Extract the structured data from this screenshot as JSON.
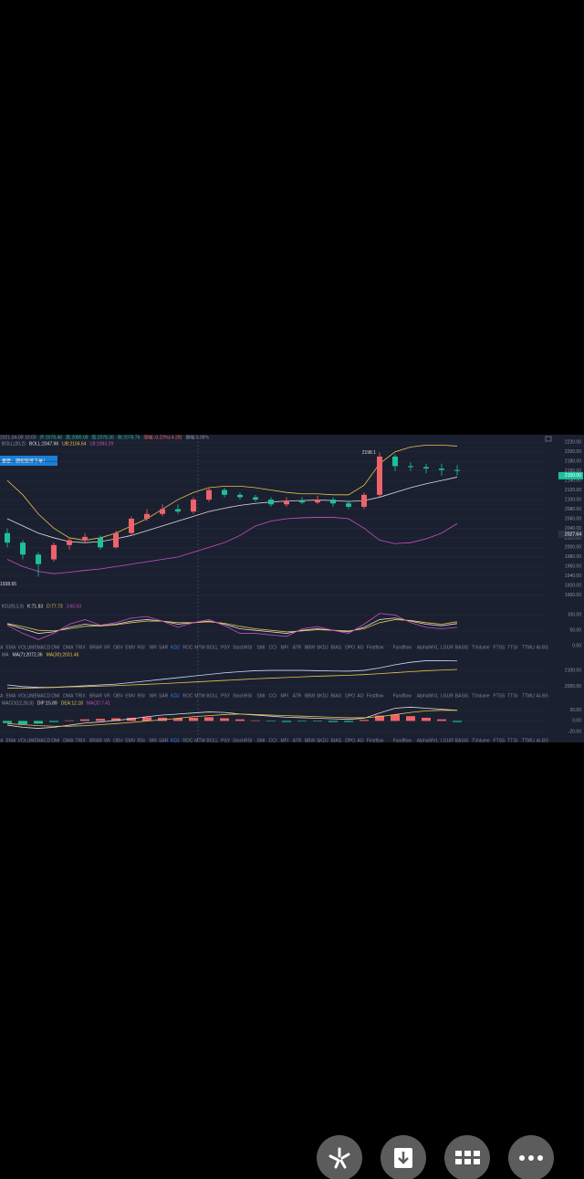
{
  "info": {
    "datetime": "2021-04-09 10:00",
    "open": "开:2078.48",
    "high": "高:2080.08",
    "low": "低:2078.36",
    "close": "收:2078.76",
    "change": "涨幅:-0.22%(-4.28)",
    "amplitude": "振幅:0.08%"
  },
  "banner": "重要：期权暂停下单！",
  "main": {
    "legend": [
      "BOLL(20,2)",
      "BOLL:2047.96",
      "UB:2104.64",
      "LB:1993.29"
    ],
    "ylim": [
      1890,
      2230
    ],
    "yticks": [
      {
        "value": 2220,
        "label": "2220.00"
      },
      {
        "value": 2200,
        "label": "2200.00"
      },
      {
        "value": 2180,
        "label": "2180.00"
      },
      {
        "value": 2160,
        "label": "2160.00"
      },
      {
        "value": 2140,
        "label": "2140.00"
      },
      {
        "value": 2120,
        "label": "2120.00"
      },
      {
        "value": 2100,
        "label": "2100.00"
      },
      {
        "value": 2080,
        "label": "2080.00"
      },
      {
        "value": 2060,
        "label": "2060.00"
      },
      {
        "value": 2040,
        "label": "2040.00"
      },
      {
        "value": 2020,
        "label": "2020.00"
      },
      {
        "value": 2000,
        "label": "2000.00"
      },
      {
        "value": 1980,
        "label": "1980.00"
      },
      {
        "value": 1960,
        "label": "1960.00"
      },
      {
        "value": 1940,
        "label": "1940.00"
      },
      {
        "value": 1920,
        "label": "1920.00"
      },
      {
        "value": 1900,
        "label": "1900.00"
      }
    ],
    "price_tags": [
      {
        "value": 2150,
        "label": "2150.00",
        "color": "#1ec09a"
      },
      {
        "value": 2027.64,
        "label": "2027.64",
        "color": "#2a3142"
      }
    ],
    "peak": {
      "value": 2198.1,
      "label": "2198.1",
      "index": 24
    },
    "trough": {
      "value": 1938.65,
      "label": "1938.65",
      "index": 2
    },
    "up_color": "#f0626a",
    "down_color": "#1ec09a",
    "candles": [
      [
        2030,
        2010,
        2040,
        2000
      ],
      [
        2010,
        1985,
        2015,
        1975
      ],
      [
        1985,
        1965,
        1990,
        1938.65
      ],
      [
        1975,
        2005,
        2010,
        1970
      ],
      [
        2005,
        2015,
        2020,
        1995
      ],
      [
        2015,
        2022,
        2030,
        2010
      ],
      [
        2020,
        2000,
        2025,
        1995
      ],
      [
        2000,
        2030,
        2035,
        1998
      ],
      [
        2030,
        2060,
        2065,
        2025
      ],
      [
        2060,
        2070,
        2080,
        2055
      ],
      [
        2070,
        2080,
        2090,
        2065
      ],
      [
        2080,
        2075,
        2090,
        2070
      ],
      [
        2075,
        2100,
        2105,
        2070
      ],
      [
        2100,
        2120,
        2125,
        2095
      ],
      [
        2120,
        2110,
        2125,
        2105
      ],
      [
        2110,
        2105,
        2115,
        2100
      ],
      [
        2105,
        2100,
        2110,
        2095
      ],
      [
        2100,
        2090,
        2105,
        2085
      ],
      [
        2090,
        2098,
        2105,
        2085
      ],
      [
        2098,
        2094,
        2105,
        2090
      ],
      [
        2094,
        2100,
        2108,
        2090
      ],
      [
        2100,
        2092,
        2105,
        2085
      ],
      [
        2092,
        2085,
        2098,
        2080
      ],
      [
        2085,
        2110,
        2115,
        2080
      ],
      [
        2110,
        2190,
        2198.1,
        2105
      ],
      [
        2190,
        2170,
        2195,
        2160
      ],
      [
        2170,
        2168,
        2178,
        2160
      ],
      [
        2168,
        2165,
        2175,
        2155
      ],
      [
        2165,
        2162,
        2175,
        2150
      ],
      [
        2162,
        2160,
        2172,
        2150
      ]
    ],
    "lines": [
      {
        "color": "#e8c34a",
        "values": [
          2140,
          2110,
          2070,
          2040,
          2020,
          2015,
          2020,
          2030,
          2045,
          2060,
          2080,
          2100,
          2115,
          2125,
          2128,
          2128,
          2125,
          2120,
          2115,
          2112,
          2112,
          2110,
          2110,
          2130,
          2175,
          2200,
          2210,
          2214,
          2214,
          2212
        ]
      },
      {
        "color": "#dddddd",
        "values": [
          2060,
          2045,
          2030,
          2020,
          2012,
          2010,
          2012,
          2018,
          2025,
          2035,
          2045,
          2055,
          2065,
          2075,
          2082,
          2088,
          2092,
          2095,
          2097,
          2098,
          2099,
          2098,
          2096,
          2098,
          2105,
          2115,
          2125,
          2133,
          2140,
          2147
        ]
      },
      {
        "color": "#c94fc0",
        "values": [
          1975,
          1960,
          1950,
          1945,
          1948,
          1952,
          1955,
          1960,
          1965,
          1970,
          1975,
          1980,
          1990,
          2000,
          2010,
          2025,
          2045,
          2055,
          2060,
          2062,
          2063,
          2063,
          2060,
          2040,
          2015,
          2008,
          2010,
          2018,
          2030,
          2050
        ]
      }
    ]
  },
  "kdj": {
    "legend": [
      "KDJ(9,3,3)",
      "K:71.83",
      "D:77.73",
      "J:60.03"
    ],
    "ylim": [
      -15,
      140
    ],
    "yticks": [
      {
        "value": 100,
        "label": "100.00"
      },
      {
        "value": 50,
        "label": "50.00"
      },
      {
        "value": 0,
        "label": "0.00"
      }
    ],
    "lines": [
      {
        "color": "#dddddd",
        "values": [
          70,
          55,
          40,
          45,
          60,
          70,
          65,
          70,
          80,
          85,
          80,
          70,
          75,
          80,
          70,
          55,
          50,
          45,
          40,
          50,
          55,
          50,
          45,
          60,
          85,
          90,
          80,
          70,
          65,
          72
        ]
      },
      {
        "color": "#e8c34a",
        "values": [
          72,
          62,
          50,
          48,
          55,
          63,
          64,
          68,
          75,
          80,
          80,
          75,
          75,
          78,
          73,
          63,
          55,
          50,
          45,
          48,
          52,
          50,
          48,
          55,
          75,
          85,
          82,
          75,
          70,
          78
        ]
      },
      {
        "color": "#c94fc0",
        "values": [
          66,
          40,
          20,
          40,
          70,
          85,
          67,
          75,
          90,
          95,
          80,
          60,
          75,
          85,
          65,
          40,
          40,
          35,
          30,
          55,
          62,
          50,
          40,
          70,
          105,
          100,
          75,
          60,
          55,
          60
        ]
      }
    ]
  },
  "ma": {
    "legend": [
      "MA",
      "MA(7):2072.36",
      "MA(30):2031.46"
    ],
    "ylim": [
      1965,
      2185
    ],
    "yticks": [
      {
        "value": 2100,
        "label": "2100.00"
      },
      {
        "value": 2000,
        "label": "2000.00"
      }
    ],
    "lines": [
      {
        "color": "#cfd8ff",
        "values": [
          2010,
          2000,
          1995,
          1995,
          2000,
          2005,
          2010,
          2015,
          2025,
          2035,
          2045,
          2055,
          2065,
          2075,
          2085,
          2092,
          2098,
          2100,
          2100,
          2100,
          2098,
          2096,
          2095,
          2100,
          2115,
          2135,
          2150,
          2160,
          2160,
          2158
        ]
      },
      {
        "color": "#e8c34a",
        "values": [
          1990,
          1990,
          1992,
          1995,
          1998,
          2000,
          2003,
          2006,
          2010,
          2014,
          2018,
          2023,
          2028,
          2033,
          2038,
          2043,
          2048,
          2052,
          2056,
          2060,
          2064,
          2067,
          2070,
          2074,
          2080,
          2086,
          2092,
          2098,
          2102,
          2106
        ]
      }
    ]
  },
  "macd": {
    "legend": [
      "MACD(12,26,9)",
      "DIF:15.89",
      "DEA:12.18",
      "MACD:7.41"
    ],
    "ylim": [
      -32,
      30
    ],
    "yticks": [
      {
        "value": 20,
        "label": "20.00"
      },
      {
        "value": 0,
        "label": "0.00"
      },
      {
        "value": -20,
        "label": "-20.00"
      }
    ],
    "hist": [
      -4,
      -6,
      -5,
      -2,
      1,
      3,
      4,
      5,
      6,
      7,
      6,
      5,
      6,
      7,
      5,
      3,
      1,
      -1,
      -2,
      -1,
      -1,
      -2,
      -2,
      2,
      10,
      12,
      9,
      6,
      3,
      -2
    ],
    "lines": [
      {
        "color": "#dddddd",
        "values": [
          -8,
          -12,
          -14,
          -12,
          -8,
          -4,
          -2,
          1,
          4,
          8,
          11,
          13,
          15,
          17,
          16,
          13,
          11,
          9,
          7,
          6,
          5,
          4,
          3,
          5,
          15,
          24,
          26,
          24,
          22,
          20
        ]
      },
      {
        "color": "#e8c34a",
        "values": [
          -5,
          -7,
          -9,
          -10,
          -10,
          -9,
          -7,
          -5,
          -3,
          0,
          2,
          5,
          8,
          10,
          12,
          13,
          12,
          11,
          10,
          9,
          8,
          7,
          6,
          6,
          8,
          12,
          16,
          19,
          20,
          20
        ]
      }
    ]
  },
  "tabs": [
    "MA",
    "EMA",
    "VOLUME",
    "MACD",
    "DMI",
    "DMA",
    "TRIX",
    "BRAR",
    "VR",
    "OBV",
    "EMV",
    "RSI",
    "WR",
    "SAR",
    "KDJ",
    "ROC",
    "MTM",
    "BOLL",
    "PSY",
    "StochRSI",
    "SMI",
    "CCI",
    "MFI",
    "ATR",
    "BBW",
    "SKDJ",
    "BIAS",
    "DPO",
    "AO",
    "Firstflow",
    "Fundflow",
    "AlphaWVL",
    "LGUR",
    "BASIS",
    "TVolume",
    "FTSS",
    "TTSI",
    "TTMU",
    "AI-BS"
  ]
}
